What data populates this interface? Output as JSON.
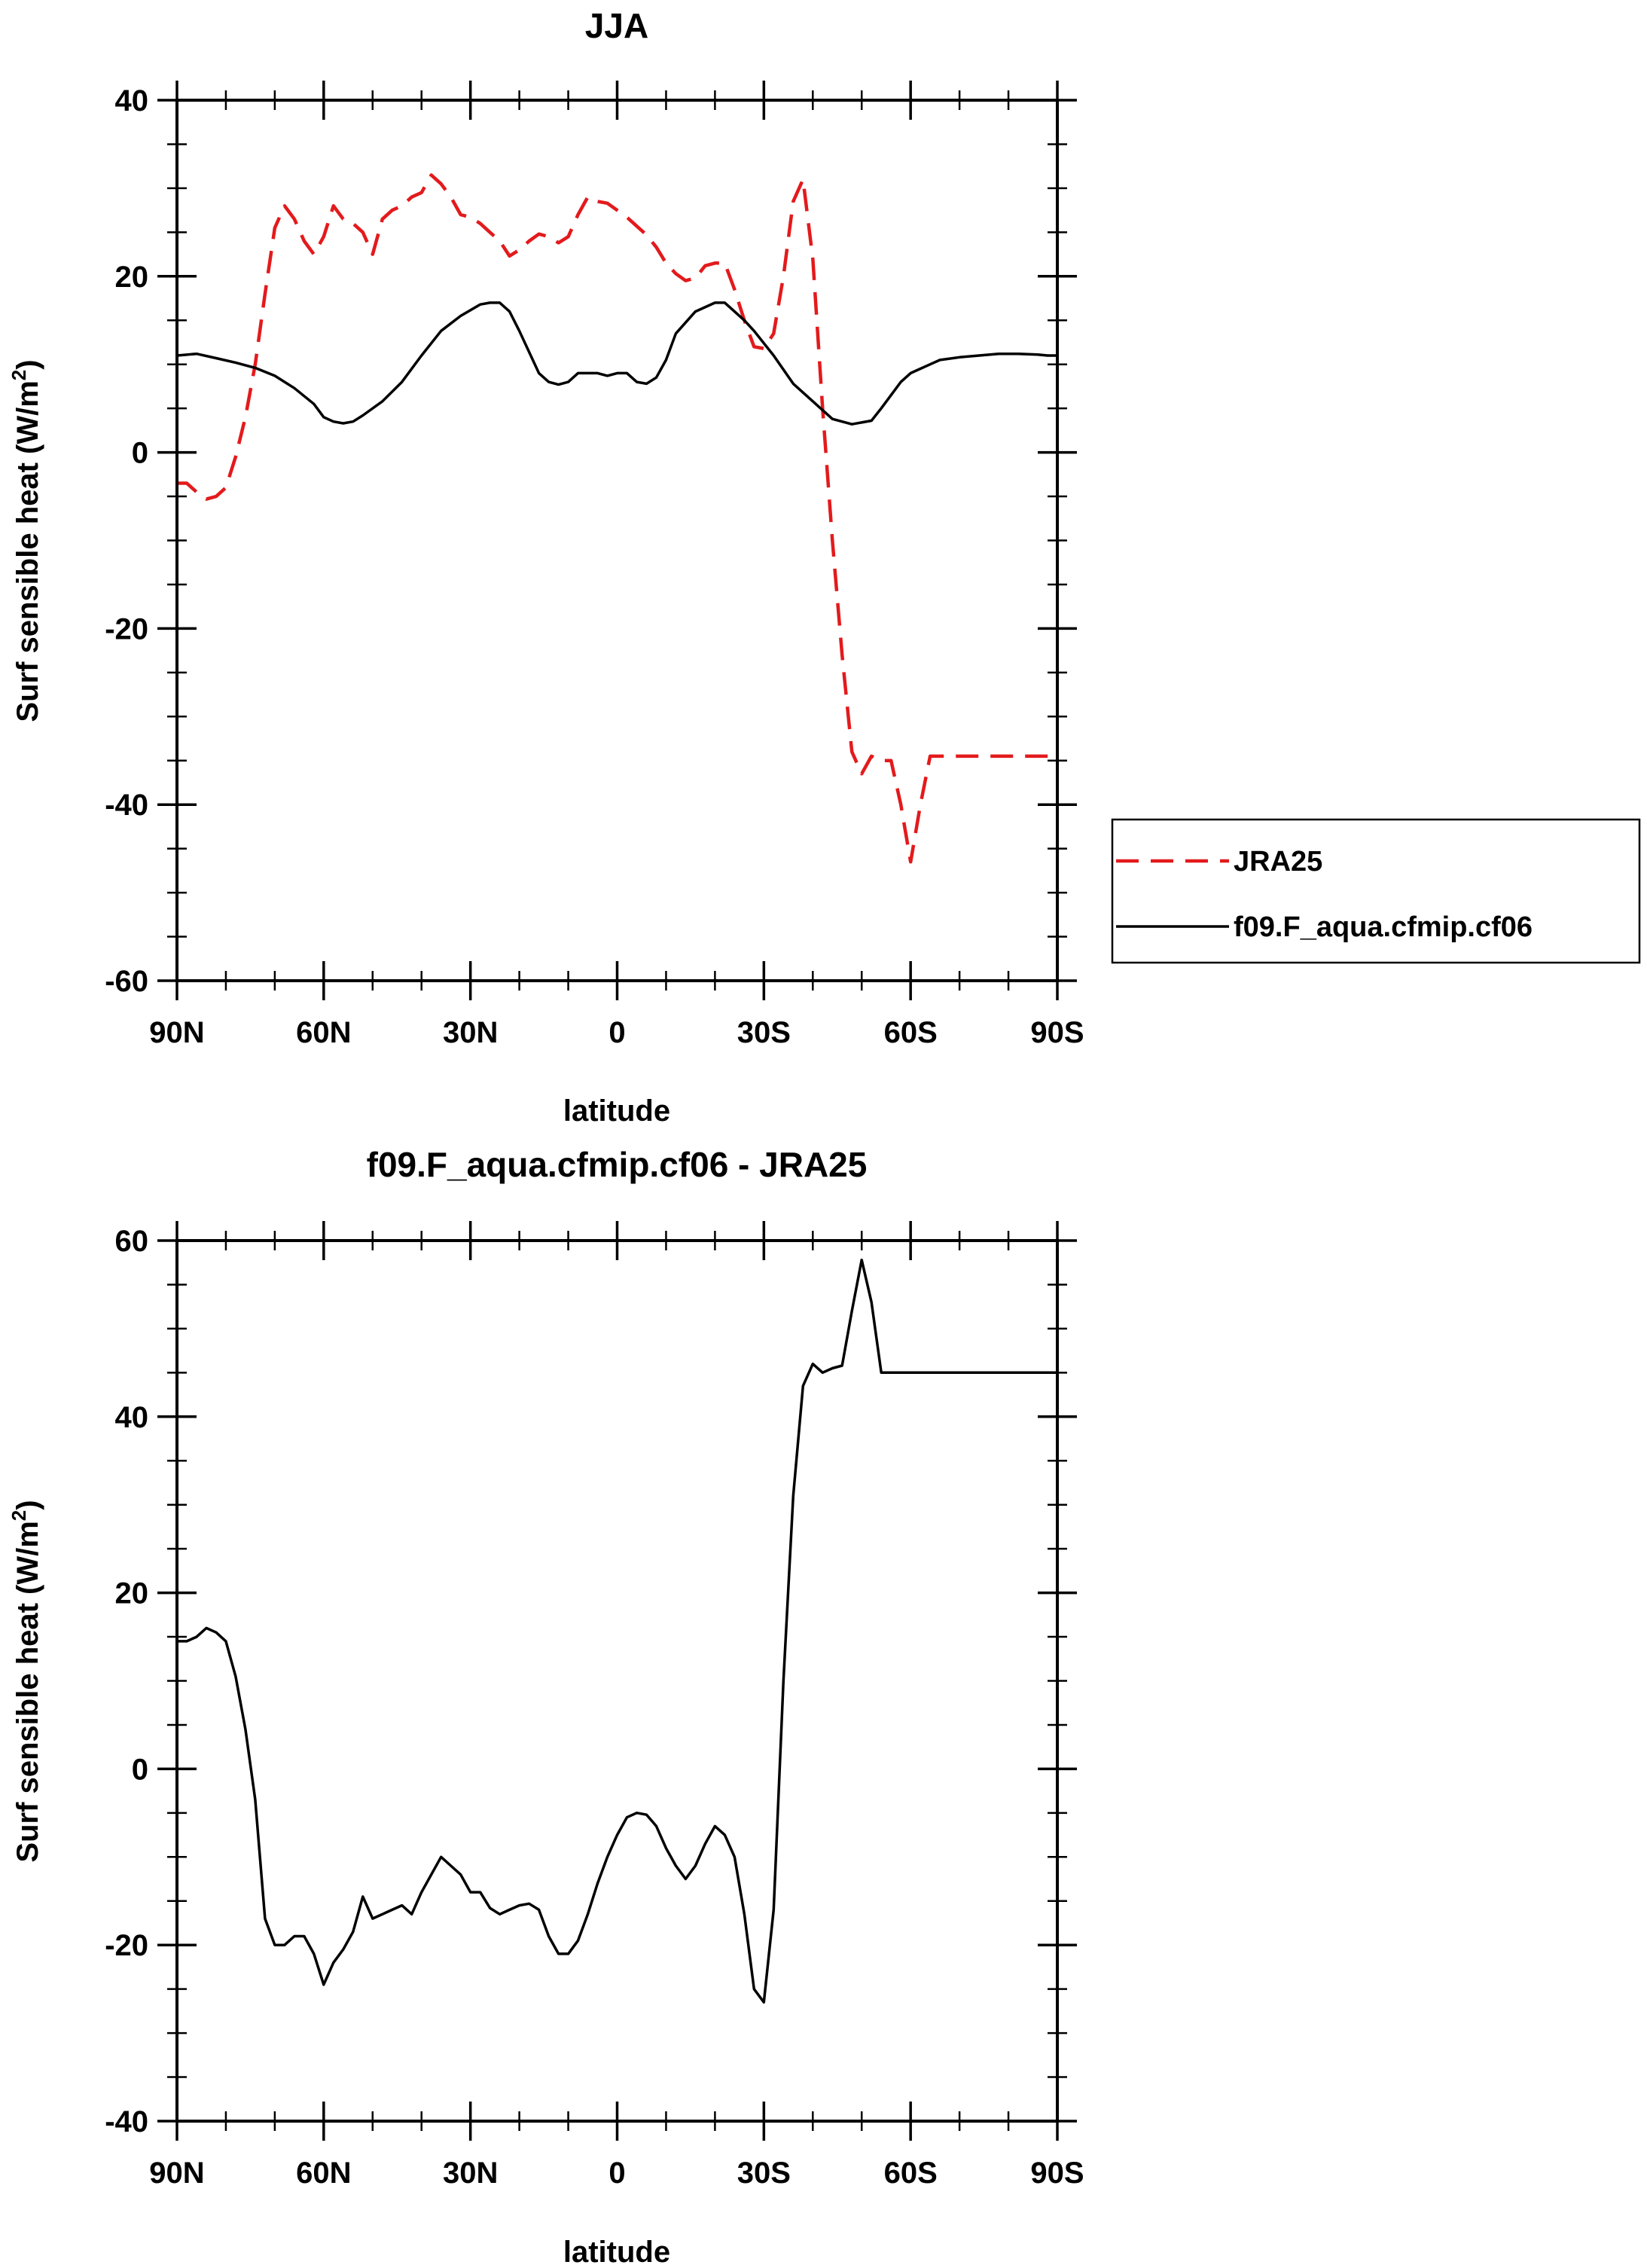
{
  "chart_data": [
    {
      "type": "line",
      "title": "JJA",
      "xlabel": "latitude",
      "ylabel": "Surf sensible heat (W/m",
      "ylabel_sup": "2",
      "ylabel_close": ")",
      "xlim": [
        90,
        -90
      ],
      "ylim": [
        -60,
        40
      ],
      "x_ticks": [
        {
          "value": 90,
          "label": "90N"
        },
        {
          "value": 60,
          "label": "60N"
        },
        {
          "value": 30,
          "label": "30N"
        },
        {
          "value": 0,
          "label": "0"
        },
        {
          "value": -30,
          "label": "30S"
        },
        {
          "value": -60,
          "label": "60S"
        },
        {
          "value": -90,
          "label": "90S"
        }
      ],
      "y_ticks": [
        {
          "value": 40,
          "label": "40"
        },
        {
          "value": 20,
          "label": "20"
        },
        {
          "value": 0,
          "label": "0"
        },
        {
          "value": -20,
          "label": "-20"
        },
        {
          "value": -40,
          "label": "-40"
        },
        {
          "value": -60,
          "label": "-60"
        }
      ],
      "legend_position": "right",
      "series": [
        {
          "name": "JRA25",
          "color": "#e31a1c",
          "dash": true,
          "x": [
            90,
            88,
            86,
            84,
            82,
            80,
            78,
            76,
            74,
            72,
            70,
            68,
            66,
            64,
            62,
            60,
            58,
            56,
            54,
            52,
            50,
            48,
            46,
            44,
            42,
            40,
            38,
            36,
            34,
            32,
            30,
            28,
            26,
            24,
            22,
            20,
            18,
            16,
            14,
            12,
            10,
            8,
            6,
            4,
            2,
            0,
            -2,
            -4,
            -6,
            -8,
            -10,
            -12,
            -14,
            -16,
            -18,
            -20,
            -22,
            -24,
            -26,
            -28,
            -30,
            -32,
            -34,
            -36,
            -38,
            -40,
            -42,
            -44,
            -46,
            -48,
            -50,
            -52,
            -54,
            -56,
            -58,
            -60,
            -62,
            -64,
            -66,
            -68,
            -70,
            -72,
            -74,
            -76,
            -78,
            -80,
            -82,
            -84,
            -86,
            -88,
            -90
          ],
          "values": [
            -3.5,
            -3.5,
            -4.5,
            -5.3,
            -5.0,
            -4.0,
            -0.5,
            4.0,
            10.0,
            18.0,
            25.5,
            28.0,
            26.5,
            24.0,
            22.5,
            24.5,
            28.0,
            26.5,
            26.0,
            25.0,
            22.5,
            26.5,
            27.5,
            28.0,
            29.0,
            29.5,
            31.5,
            30.5,
            29.0,
            27.0,
            26.7,
            26.0,
            25.0,
            24.0,
            22.3,
            23.0,
            24.0,
            24.8,
            24.5,
            23.8,
            24.5,
            27.0,
            29.0,
            28.5,
            28.3,
            27.5,
            26.7,
            25.7,
            24.7,
            23.3,
            21.5,
            20.3,
            19.5,
            19.8,
            21.2,
            21.5,
            21.5,
            18.5,
            15.0,
            12.0,
            11.8,
            13.5,
            20.0,
            28.5,
            31.0,
            22.0,
            5.0,
            -10.0,
            -23.0,
            -34.0,
            -36.5,
            -34.5,
            -35.0,
            -35.0,
            -40.0,
            -46.5,
            -40.0,
            -34.5,
            -34.5,
            -34.5,
            -34.5,
            -34.5,
            -34.5,
            -34.5,
            -34.5,
            -34.5,
            -34.5,
            -34.5,
            -34.5,
            -34.5,
            -34.5
          ]
        },
        {
          "name": "f09.F_aqua.cfmip.cf06",
          "color": "#000000",
          "dash": false,
          "x": [
            90,
            86,
            82,
            78,
            74,
            70,
            66,
            62,
            60,
            58,
            56,
            54,
            52,
            48,
            44,
            40,
            36,
            32,
            28,
            26,
            24,
            22,
            20,
            16,
            14,
            12,
            10,
            8,
            6,
            4,
            2,
            0,
            -2,
            -4,
            -6,
            -8,
            -10,
            -12,
            -16,
            -20,
            -22,
            -24,
            -26,
            -28,
            -32,
            -36,
            -40,
            -44,
            -48,
            -52,
            -54,
            -56,
            -58,
            -60,
            -62,
            -64,
            -66,
            -70,
            -74,
            -78,
            -82,
            -86,
            -88,
            -90
          ],
          "values": [
            11.0,
            11.2,
            10.7,
            10.2,
            9.6,
            8.7,
            7.3,
            5.5,
            4.0,
            3.5,
            3.3,
            3.5,
            4.2,
            5.8,
            8.0,
            11.0,
            13.8,
            15.5,
            16.8,
            17.0,
            17.0,
            16.0,
            13.8,
            9.0,
            8.0,
            7.7,
            8.0,
            9.0,
            9.0,
            9.0,
            8.7,
            9.0,
            9.0,
            8.0,
            7.8,
            8.5,
            10.5,
            13.5,
            16.0,
            17.0,
            17.0,
            16.0,
            15.0,
            13.8,
            11.0,
            7.8,
            5.8,
            3.8,
            3.2,
            3.6,
            5.0,
            6.5,
            8.0,
            9.0,
            9.5,
            10.0,
            10.5,
            10.8,
            11.0,
            11.2,
            11.2,
            11.1,
            11.0,
            11.0
          ]
        }
      ]
    },
    {
      "type": "line",
      "title": "f09.F_aqua.cfmip.cf06 - JRA25",
      "xlabel": "latitude",
      "ylabel": "Surf sensible heat (W/m",
      "ylabel_sup": "2",
      "ylabel_close": ")",
      "xlim": [
        90,
        -90
      ],
      "ylim": [
        -40,
        60
      ],
      "x_ticks": [
        {
          "value": 90,
          "label": "90N"
        },
        {
          "value": 60,
          "label": "60N"
        },
        {
          "value": 30,
          "label": "30N"
        },
        {
          "value": 0,
          "label": "0"
        },
        {
          "value": -30,
          "label": "30S"
        },
        {
          "value": -60,
          "label": "60S"
        },
        {
          "value": -90,
          "label": "90S"
        }
      ],
      "y_ticks": [
        {
          "value": 60,
          "label": "60"
        },
        {
          "value": 40,
          "label": "40"
        },
        {
          "value": 20,
          "label": "20"
        },
        {
          "value": 0,
          "label": "0"
        },
        {
          "value": -20,
          "label": "-20"
        },
        {
          "value": -40,
          "label": "-40"
        }
      ],
      "series": [
        {
          "name": "f09.F_aqua.cfmip.cf06 - JRA25",
          "color": "#000000",
          "dash": false,
          "x": [
            90,
            88,
            86,
            84,
            82,
            80,
            78,
            76,
            74,
            72,
            70,
            68,
            66,
            64,
            62,
            60,
            58,
            56,
            54,
            52,
            50,
            48,
            46,
            44,
            42,
            40,
            38,
            36,
            34,
            32,
            30,
            28,
            26,
            24,
            22,
            20,
            18,
            16,
            14,
            12,
            10,
            8,
            6,
            4,
            2,
            0,
            -2,
            -4,
            -6,
            -8,
            -10,
            -12,
            -14,
            -16,
            -18,
            -20,
            -22,
            -24,
            -26,
            -28,
            -30,
            -32,
            -34,
            -36,
            -38,
            -40,
            -42,
            -44,
            -46,
            -48,
            -50,
            -52,
            -54,
            -56,
            -58,
            -60,
            -62,
            -64,
            -66,
            -68,
            -70,
            -72,
            -74,
            -76,
            -78,
            -80,
            -82,
            -84,
            -86,
            -88,
            -90
          ],
          "values": [
            14.5,
            14.5,
            15.0,
            16.0,
            15.5,
            14.5,
            10.5,
            4.5,
            -3.5,
            -17.0,
            -20.0,
            -20.0,
            -19.0,
            -19.0,
            -21.0,
            -24.5,
            -22.0,
            -20.5,
            -18.5,
            -14.5,
            -17.0,
            -16.5,
            -16.0,
            -15.5,
            -16.5,
            -14.0,
            -12.0,
            -10.0,
            -11.0,
            -12.0,
            -14.0,
            -14.0,
            -15.8,
            -16.5,
            -16.0,
            -15.5,
            -15.3,
            -16.0,
            -19.0,
            -21.0,
            -21.0,
            -19.5,
            -16.5,
            -13.0,
            -10.0,
            -7.5,
            -5.5,
            -5.0,
            -5.2,
            -6.5,
            -9.0,
            -11.0,
            -12.5,
            -11.0,
            -8.5,
            -6.5,
            -7.5,
            -10.0,
            -16.5,
            -25.0,
            -26.5,
            -16.0,
            10.0,
            31.0,
            43.5,
            46.0,
            45.0,
            45.5,
            45.8,
            52.0,
            57.8,
            53.0,
            45.0,
            45.0,
            45.0,
            45.0,
            45.0,
            45.0,
            45.0,
            45.0,
            45.0,
            45.0,
            45.0,
            45.0,
            45.0,
            45.0,
            45.0,
            45.0,
            45.0,
            45.0,
            45.0
          ]
        }
      ]
    }
  ]
}
